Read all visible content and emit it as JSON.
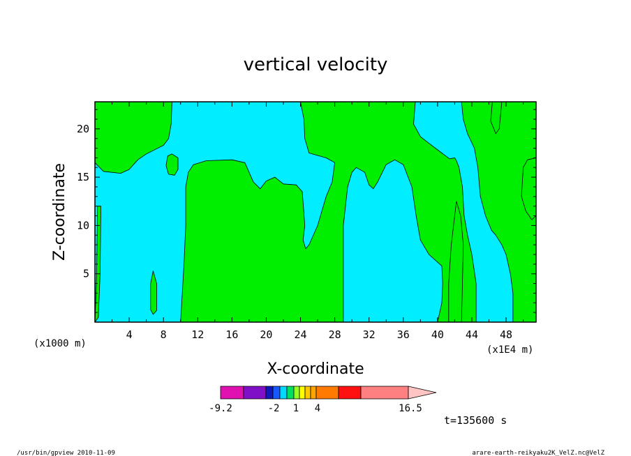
{
  "chart_data": {
    "type": "contour",
    "title": "vertical velocity",
    "xlabel": "X-coordinate",
    "ylabel": "Z-coordinate",
    "x_unit_left": "(x1000 m)",
    "x_unit_right": "(x1E4 m)",
    "xlim": [
      0,
      51.5
    ],
    "ylim": [
      0,
      22.8
    ],
    "x_ticks": [
      4,
      8,
      12,
      16,
      20,
      24,
      28,
      32,
      36,
      40,
      44,
      48
    ],
    "y_ticks": [
      5,
      10,
      15,
      20
    ],
    "fill_colors": {
      "negative": "#00eeff",
      "positive": "#00ee00"
    },
    "regions": [
      {
        "sign": "negative",
        "outline": [
          [
            0,
            16.5
          ],
          [
            1,
            15.6
          ],
          [
            3,
            15.4
          ],
          [
            4,
            15.8
          ],
          [
            5,
            16.8
          ],
          [
            6,
            17.4
          ],
          [
            8,
            18.3
          ],
          [
            8.6,
            19
          ],
          [
            8.9,
            20.5
          ],
          [
            9,
            22.8
          ],
          [
            14,
            22.8
          ],
          [
            19,
            22.8
          ],
          [
            24,
            22.8
          ],
          [
            24.4,
            21
          ],
          [
            24.5,
            19
          ],
          [
            25,
            17.5
          ],
          [
            27,
            17
          ],
          [
            28,
            16.5
          ],
          [
            27.7,
            14.5
          ],
          [
            27,
            13
          ],
          [
            26,
            10
          ],
          [
            25,
            8
          ],
          [
            24.6,
            7.6
          ],
          [
            24.3,
            8.5
          ],
          [
            24.5,
            10
          ],
          [
            24.2,
            13.5
          ],
          [
            23.5,
            14.2
          ],
          [
            22,
            14.3
          ],
          [
            21,
            15
          ],
          [
            20,
            14.6
          ],
          [
            19.3,
            13.8
          ],
          [
            18.5,
            14.5
          ],
          [
            18,
            15.5
          ],
          [
            17.5,
            16.5
          ],
          [
            16,
            16.8
          ],
          [
            13,
            16.7
          ],
          [
            11.5,
            16.3
          ],
          [
            10.9,
            15.5
          ],
          [
            10.6,
            14
          ],
          [
            10.6,
            10
          ],
          [
            10.4,
            6
          ],
          [
            10.2,
            3
          ],
          [
            10,
            0
          ],
          [
            0,
            0
          ]
        ]
      },
      {
        "sign": "negative",
        "outline": [
          [
            29,
            0
          ],
          [
            29,
            5
          ],
          [
            29,
            10
          ],
          [
            29.5,
            14
          ],
          [
            30,
            15.5
          ],
          [
            30.5,
            16
          ],
          [
            31.5,
            15.5
          ],
          [
            32,
            14.2
          ],
          [
            32.5,
            13.8
          ],
          [
            33,
            14.5
          ],
          [
            34,
            16.3
          ],
          [
            35,
            16.8
          ],
          [
            36,
            16.3
          ],
          [
            37,
            14
          ],
          [
            37.5,
            11
          ],
          [
            38,
            8.5
          ],
          [
            39,
            7
          ],
          [
            40,
            6.2
          ],
          [
            40.5,
            5.8
          ],
          [
            40.6,
            4
          ],
          [
            40.5,
            2
          ],
          [
            40,
            0
          ]
        ]
      },
      {
        "sign": "negative",
        "outline": [
          [
            37.4,
            22.8
          ],
          [
            37.2,
            20.5
          ],
          [
            38,
            19.2
          ],
          [
            39,
            18.5
          ],
          [
            40.5,
            17.5
          ],
          [
            41.4,
            16.9
          ],
          [
            42,
            17
          ],
          [
            42.2,
            16.7
          ],
          [
            42.5,
            16
          ],
          [
            42.9,
            14
          ],
          [
            43.1,
            11
          ],
          [
            43.5,
            9
          ],
          [
            44,
            7
          ],
          [
            44.5,
            4
          ],
          [
            44.5,
            0
          ],
          [
            48.8,
            0
          ],
          [
            48.8,
            3
          ],
          [
            48.5,
            5
          ],
          [
            48,
            7
          ],
          [
            47.5,
            8
          ],
          [
            46.8,
            9
          ],
          [
            46.3,
            9.5
          ],
          [
            45.6,
            11
          ],
          [
            45,
            13
          ],
          [
            44.7,
            16
          ],
          [
            44.3,
            18
          ],
          [
            43.5,
            19.5
          ],
          [
            43,
            21
          ],
          [
            42.8,
            22.8
          ]
        ]
      },
      {
        "sign": "positive",
        "outline": [
          [
            0.4,
            0.5
          ],
          [
            0.6,
            5
          ],
          [
            0.7,
            12
          ],
          [
            0.3,
            12
          ],
          [
            0.2,
            5
          ],
          [
            0,
            0
          ]
        ]
      },
      {
        "sign": "positive",
        "outline": [
          [
            6.8,
            5.3
          ],
          [
            7.2,
            4
          ],
          [
            7.2,
            1.2
          ],
          [
            6.8,
            0.8
          ],
          [
            6.5,
            1.3
          ],
          [
            6.5,
            4
          ],
          [
            6.8,
            5.3
          ]
        ]
      },
      {
        "sign": "positive",
        "outline": [
          [
            8.5,
            17.2
          ],
          [
            9,
            17.4
          ],
          [
            9.7,
            17
          ],
          [
            9.7,
            15.8
          ],
          [
            9.3,
            15.2
          ],
          [
            8.6,
            15.3
          ],
          [
            8.3,
            16.2
          ],
          [
            8.5,
            17.2
          ]
        ]
      },
      {
        "sign": "positive",
        "outline": [
          [
            41.3,
            0
          ],
          [
            41.3,
            4
          ],
          [
            41.6,
            8
          ],
          [
            42.2,
            12.5
          ],
          [
            42.7,
            11
          ],
          [
            43,
            8
          ],
          [
            42.9,
            4
          ],
          [
            42.8,
            0
          ]
        ]
      },
      {
        "sign": "positive",
        "outline": [
          [
            46.4,
            22.8
          ],
          [
            46.2,
            20.8
          ],
          [
            46.8,
            19.5
          ],
          [
            47.2,
            20
          ],
          [
            47.5,
            22.8
          ]
        ]
      },
      {
        "sign": "positive",
        "outline": [
          [
            51.5,
            17
          ],
          [
            50.5,
            16.8
          ],
          [
            50,
            16
          ],
          [
            49.8,
            13
          ],
          [
            50.3,
            11.5
          ],
          [
            51,
            10.6
          ],
          [
            51.5,
            11
          ]
        ]
      }
    ],
    "colorbar": {
      "tick_labels": [
        "-9.2",
        "-2",
        "1",
        "4",
        "16.5"
      ],
      "colors": [
        "#e010b0",
        "#8010c8",
        "#1018b8",
        "#1858ff",
        "#00d8ff",
        "#00e060",
        "#98ff20",
        "#ffff00",
        "#ffc800",
        "#ffa400",
        "#ff7a00",
        "#ff1010",
        "#ff8080",
        "#ffc4c4"
      ]
    },
    "time_label": "t=135600 s"
  },
  "footer": {
    "left": "/usr/bin/gpview   2010-11-09",
    "right": "arare-earth-reikyaku2K_VelZ.nc@VelZ"
  }
}
